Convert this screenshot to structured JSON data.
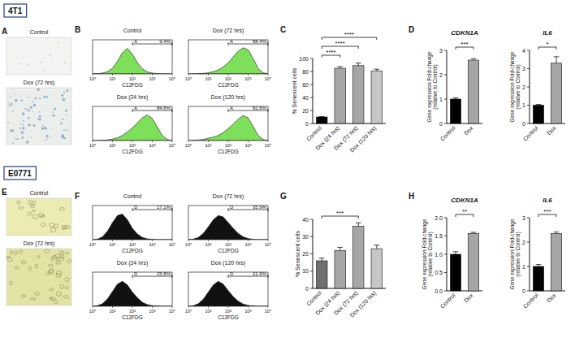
{
  "sections": [
    {
      "label": "4T1"
    },
    {
      "label": "E0771"
    }
  ],
  "images": [
    {
      "panel": "A",
      "titles": [
        "Control",
        "Dox (72 hrs)"
      ]
    },
    {
      "panel": "E",
      "titles": [
        "Control",
        "Dox (72 hrs)"
      ]
    }
  ],
  "chart_data": [
    {
      "type": "area",
      "panel": "B",
      "title": "Control",
      "x_label": "C12FDG",
      "log": "x",
      "color": "#7ee05a",
      "x": [
        1,
        1.78,
        3.16,
        5.62,
        10,
        17.8,
        31.6,
        56.2,
        100,
        178,
        316,
        562,
        1000,
        1778,
        3162,
        5623,
        10000
      ],
      "values": [
        0,
        1,
        3,
        8,
        20,
        45,
        75,
        90,
        70,
        40,
        18,
        7,
        3,
        1,
        0,
        0,
        0
      ],
      "xlim": [
        1,
        10000
      ],
      "xticks": [
        {
          "value": 1,
          "label": "10⁰"
        },
        {
          "value": 10,
          "label": "10¹"
        },
        {
          "value": 100,
          "label": "10²"
        },
        {
          "value": 1000,
          "label": "10³"
        },
        {
          "value": 10000,
          "label": "10⁴"
        }
      ],
      "ylim": [
        0,
        120
      ],
      "tick_labels": "x",
      "gate": {
        "name": "A",
        "from": 100,
        "to": 10000,
        "label": "9.4%"
      }
    },
    {
      "type": "area",
      "panel": "B",
      "title": "Dox (72 hrs)",
      "x_label": "C12FDG",
      "log": "x",
      "color": "#7ee05a",
      "x": [
        1,
        1.78,
        3.16,
        5.62,
        10,
        17.8,
        31.6,
        56.2,
        100,
        178,
        316,
        562,
        1000,
        1778,
        3162,
        5623,
        10000
      ],
      "values": [
        0,
        0,
        1,
        2,
        4,
        8,
        14,
        25,
        40,
        60,
        80,
        92,
        85,
        55,
        20,
        4,
        0
      ],
      "xlim": [
        1,
        10000
      ],
      "xticks": [
        {
          "value": 1,
          "label": "10⁰"
        },
        {
          "value": 10,
          "label": "10¹"
        },
        {
          "value": 100,
          "label": "10²"
        },
        {
          "value": 1000,
          "label": "10³"
        },
        {
          "value": 10000,
          "label": "10⁴"
        }
      ],
      "ylim": [
        0,
        120
      ],
      "tick_labels": "x",
      "gate": {
        "name": "A",
        "from": 100,
        "to": 10000,
        "label": "88.4%"
      }
    },
    {
      "type": "area",
      "panel": "B",
      "title": "Dox (24 hrs)",
      "x_label": "C12FDG",
      "log": "x",
      "color": "#7ee05a",
      "x": [
        1,
        1.78,
        3.16,
        5.62,
        10,
        17.8,
        31.6,
        56.2,
        100,
        178,
        316,
        562,
        1000,
        1778,
        3162,
        5623,
        10000
      ],
      "values": [
        0,
        0,
        1,
        2,
        5,
        10,
        18,
        30,
        45,
        62,
        80,
        90,
        78,
        48,
        18,
        4,
        0
      ],
      "xlim": [
        1,
        10000
      ],
      "xticks": [
        {
          "value": 1,
          "label": "10⁰"
        },
        {
          "value": 10,
          "label": "10¹"
        },
        {
          "value": 100,
          "label": "10²"
        },
        {
          "value": 1000,
          "label": "10³"
        },
        {
          "value": 10000,
          "label": "10⁴"
        }
      ],
      "ylim": [
        0,
        120
      ],
      "tick_labels": "x",
      "gate": {
        "name": "A",
        "from": 100,
        "to": 10000,
        "label": "84.8%"
      }
    },
    {
      "type": "area",
      "panel": "B",
      "title": "Dox (120 hrs)",
      "x_label": "C12FDG",
      "log": "x",
      "color": "#7ee05a",
      "x": [
        1,
        1.78,
        3.16,
        5.62,
        10,
        17.8,
        31.6,
        56.2,
        100,
        178,
        316,
        562,
        1000,
        1778,
        3162,
        5623,
        10000
      ],
      "values": [
        0,
        1,
        2,
        4,
        8,
        12,
        18,
        28,
        42,
        58,
        75,
        88,
        80,
        50,
        18,
        4,
        0
      ],
      "xlim": [
        1,
        10000
      ],
      "xticks": [
        {
          "value": 1,
          "label": "10⁰"
        },
        {
          "value": 10,
          "label": "10¹"
        },
        {
          "value": 100,
          "label": "10²"
        },
        {
          "value": 1000,
          "label": "10³"
        },
        {
          "value": 10000,
          "label": "10⁴"
        }
      ],
      "ylim": [
        0,
        120
      ],
      "tick_labels": "x",
      "gate": {
        "name": "A",
        "from": 100,
        "to": 10000,
        "label": "82.8%"
      }
    },
    {
      "type": "bar",
      "panel": "C",
      "categories": [
        "Control",
        "Dox (24 hrs)",
        "Dox (72 hrs)",
        "Dox (120 hrs)"
      ],
      "values": [
        10,
        85,
        89,
        81
      ],
      "errors": [
        0.5,
        2.5,
        4,
        2.5
      ],
      "colors": [
        "#000000",
        "#a6a6a6",
        "#a6a6a6",
        "#c6c6c6"
      ],
      "y_label": "% Senescent cells",
      "ylim": [
        0,
        100
      ],
      "yticks": [
        0,
        20,
        40,
        60,
        80,
        100
      ],
      "annotations": [
        {
          "text": "****",
          "between": [
            0,
            1
          ]
        },
        {
          "text": "****",
          "between": [
            0,
            2
          ]
        },
        {
          "text": "****",
          "between": [
            0,
            3
          ]
        }
      ]
    },
    {
      "type": "bar",
      "panel": "D",
      "title": "CDKN1A",
      "categories": [
        "Control",
        "Dox"
      ],
      "values": [
        1,
        2.6
      ],
      "errors": [
        0.05,
        0.06
      ],
      "colors": [
        "#000000",
        "#a6a6a6"
      ],
      "y_label": "Gene expression Fold-change (relative to Control)",
      "ylim": [
        0,
        3
      ],
      "yticks": [
        0,
        1,
        2,
        3
      ],
      "annotations": [
        {
          "text": "***",
          "between": [
            0,
            1
          ]
        }
      ]
    },
    {
      "type": "bar",
      "panel": "D",
      "title": "IL6",
      "categories": [
        "Control",
        "Dox"
      ],
      "values": [
        1,
        3.3
      ],
      "errors": [
        0.04,
        0.35
      ],
      "colors": [
        "#000000",
        "#a6a6a6"
      ],
      "y_label": "Gene expression Fold-change (relative to Control)",
      "ylim": [
        0,
        4
      ],
      "yticks": [
        0,
        1,
        2,
        3,
        4
      ],
      "annotations": [
        {
          "text": "*",
          "between": [
            0,
            1
          ]
        }
      ]
    },
    {
      "type": "area",
      "panel": "F",
      "title": "Control",
      "x_label": "C12FDG",
      "log": "x",
      "color": "#111111",
      "x": [
        1,
        1.78,
        3.16,
        5.62,
        10,
        17.8,
        31.6,
        56.2,
        100,
        178,
        316,
        562,
        1000,
        1778,
        3162,
        5623,
        10000
      ],
      "values": [
        0,
        2,
        10,
        30,
        60,
        85,
        90,
        70,
        40,
        20,
        8,
        3,
        1,
        0,
        0,
        0,
        0
      ],
      "xlim": [
        1,
        10000
      ],
      "xticks": [
        {
          "value": 1,
          "label": "10⁰"
        },
        {
          "value": 10,
          "label": "10¹"
        },
        {
          "value": 100,
          "label": "10²"
        },
        {
          "value": 1000,
          "label": "10³"
        },
        {
          "value": 10000,
          "label": "10⁴"
        }
      ],
      "ylim": [
        0,
        120
      ],
      "tick_labels": "x",
      "gate": {
        "name": "D",
        "from": 100,
        "to": 10000,
        "label": "17.1%"
      }
    },
    {
      "type": "area",
      "panel": "F",
      "title": "Dox (72 hrs)",
      "x_label": "C12FDG",
      "log": "x",
      "color": "#111111",
      "x": [
        1,
        1.78,
        3.16,
        5.62,
        10,
        17.8,
        31.6,
        56.2,
        100,
        178,
        316,
        562,
        1000,
        1778,
        3162,
        5623,
        10000
      ],
      "values": [
        0,
        2,
        8,
        22,
        45,
        70,
        85,
        80,
        60,
        40,
        22,
        10,
        4,
        1,
        0,
        0,
        0
      ],
      "xlim": [
        1,
        10000
      ],
      "xticks": [
        {
          "value": 1,
          "label": "10⁰"
        },
        {
          "value": 10,
          "label": "10¹"
        },
        {
          "value": 100,
          "label": "10²"
        },
        {
          "value": 1000,
          "label": "10³"
        },
        {
          "value": 10000,
          "label": "10⁴"
        }
      ],
      "ylim": [
        0,
        120
      ],
      "tick_labels": "x",
      "gate": {
        "name": "D",
        "from": 100,
        "to": 10000,
        "label": "35.9%"
      }
    },
    {
      "type": "area",
      "panel": "F",
      "title": "Dox (24 hrs)",
      "x_label": "C12FDG",
      "log": "x",
      "color": "#111111",
      "x": [
        1,
        1.78,
        3.16,
        5.62,
        10,
        17.8,
        31.6,
        56.2,
        100,
        178,
        316,
        562,
        1000,
        1778,
        3162,
        5623,
        10000
      ],
      "values": [
        0,
        2,
        9,
        26,
        52,
        78,
        88,
        75,
        50,
        30,
        14,
        6,
        2,
        1,
        0,
        0,
        0
      ],
      "xlim": [
        1,
        10000
      ],
      "xticks": [
        {
          "value": 1,
          "label": "10⁰"
        },
        {
          "value": 10,
          "label": "10¹"
        },
        {
          "value": 100,
          "label": "10²"
        },
        {
          "value": 1000,
          "label": "10³"
        },
        {
          "value": 10000,
          "label": "10⁴"
        }
      ],
      "ylim": [
        0,
        120
      ],
      "tick_labels": "x",
      "gate": {
        "name": "D",
        "from": 100,
        "to": 10000,
        "label": "25.8%"
      }
    },
    {
      "type": "area",
      "panel": "F",
      "title": "Dox (120 hrs)",
      "x_label": "C12FDG",
      "log": "x",
      "color": "#111111",
      "x": [
        1,
        1.78,
        3.16,
        5.62,
        10,
        17.8,
        31.6,
        56.2,
        100,
        178,
        316,
        562,
        1000,
        1778,
        3162,
        5623,
        10000
      ],
      "values": [
        0,
        2,
        9,
        25,
        50,
        75,
        88,
        78,
        55,
        34,
        18,
        8,
        3,
        1,
        0,
        0,
        0
      ],
      "xlim": [
        1,
        10000
      ],
      "xticks": [
        {
          "value": 1,
          "label": "10⁰"
        },
        {
          "value": 10,
          "label": "10¹"
        },
        {
          "value": 100,
          "label": "10²"
        },
        {
          "value": 1000,
          "label": "10³"
        },
        {
          "value": 10000,
          "label": "10⁴"
        }
      ],
      "ylim": [
        0,
        120
      ],
      "tick_labels": "x",
      "gate": {
        "name": "D",
        "from": 100,
        "to": 10000,
        "label": "21.9%"
      }
    },
    {
      "type": "bar",
      "panel": "G",
      "categories": [
        "Control",
        "Dox (24 hrs)",
        "Dox (72 hrs)",
        "Dox (120 hrs)"
      ],
      "values": [
        16,
        22,
        36,
        23
      ],
      "errors": [
        1.5,
        1.8,
        2,
        2
      ],
      "colors": [
        "#6f6f6f",
        "#a6a6a6",
        "#a6a6a6",
        "#c6c6c6"
      ],
      "y_label": "% Senescent cells",
      "ylim": [
        0,
        40
      ],
      "yticks": [
        0,
        10,
        20,
        30,
        40
      ],
      "annotations": [
        {
          "text": "***",
          "between": [
            0,
            2
          ]
        }
      ]
    },
    {
      "type": "bar",
      "panel": "H",
      "title": "CDKN1A",
      "categories": [
        "Control",
        "Dox"
      ],
      "values": [
        1,
        1.57
      ],
      "errors": [
        0.07,
        0.03
      ],
      "colors": [
        "#000000",
        "#a6a6a6"
      ],
      "y_label": "Gene expression Fold-change (relative to Control)",
      "ylim": [
        0,
        2
      ],
      "yticks": [
        {
          "value": 0,
          "label": "0.0"
        },
        {
          "value": 0.5,
          "label": "0.5"
        },
        {
          "value": 1,
          "label": "1.0"
        },
        {
          "value": 1.5,
          "label": "1.5"
        },
        {
          "value": 2,
          "label": "2.0"
        }
      ],
      "annotations": [
        {
          "text": "**",
          "between": [
            0,
            1
          ]
        }
      ]
    },
    {
      "type": "bar",
      "panel": "H",
      "title": "IL6",
      "categories": [
        "Control",
        "Dox"
      ],
      "values": [
        1,
        2.35
      ],
      "errors": [
        0.08,
        0.06
      ],
      "colors": [
        "#000000",
        "#a6a6a6"
      ],
      "y_label": "Gene expression Fold-change (relative to Control)",
      "ylim": [
        0,
        3
      ],
      "yticks": [
        0,
        1,
        2,
        3
      ],
      "annotations": [
        {
          "text": "***",
          "between": [
            0,
            1
          ]
        }
      ]
    }
  ]
}
